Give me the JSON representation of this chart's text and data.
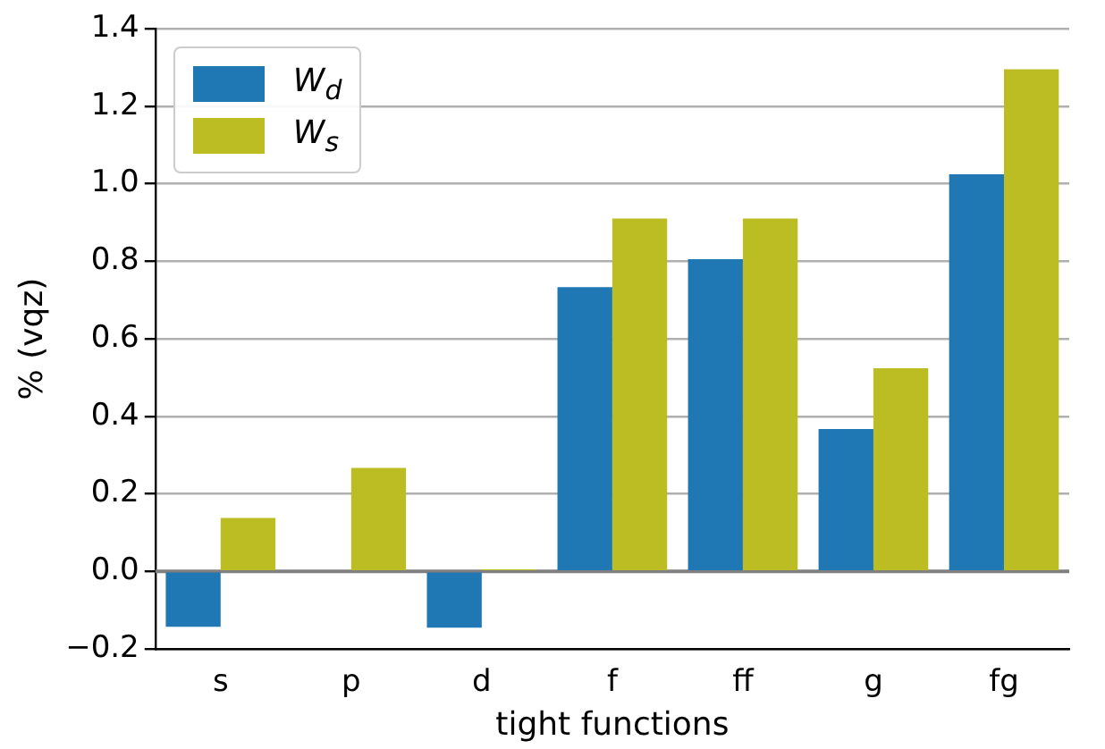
{
  "chart_data": {
    "type": "bar",
    "xlabel": "tight functions",
    "ylabel": "% (vqz)",
    "categories": [
      "s",
      "p",
      "d",
      "f",
      "ff",
      "g",
      "fg"
    ],
    "series": [
      {
        "name": "W$_{d}$",
        "color": "#1f77b4",
        "values": [
          -0.143,
          0.0,
          -0.145,
          0.733,
          0.805,
          0.367,
          1.024
        ]
      },
      {
        "name": "W$_{s}$",
        "color": "#bcbd22",
        "values": [
          0.138,
          0.267,
          0.005,
          0.91,
          0.91,
          0.524,
          1.295
        ]
      }
    ],
    "ylim": [
      -0.2,
      1.4
    ],
    "yticks": [
      {
        "value": -0.2,
        "label": "−0.2"
      },
      {
        "value": 0,
        "label": "0.0"
      },
      0.2,
      0.4,
      0.6,
      0.8,
      {
        "value": 1,
        "label": "1.0"
      },
      1.2,
      1.4
    ],
    "grid": "y",
    "legend": "top left",
    "ref_lines": [
      {
        "axis": "y",
        "value": 0,
        "color": "#808080"
      }
    ]
  }
}
